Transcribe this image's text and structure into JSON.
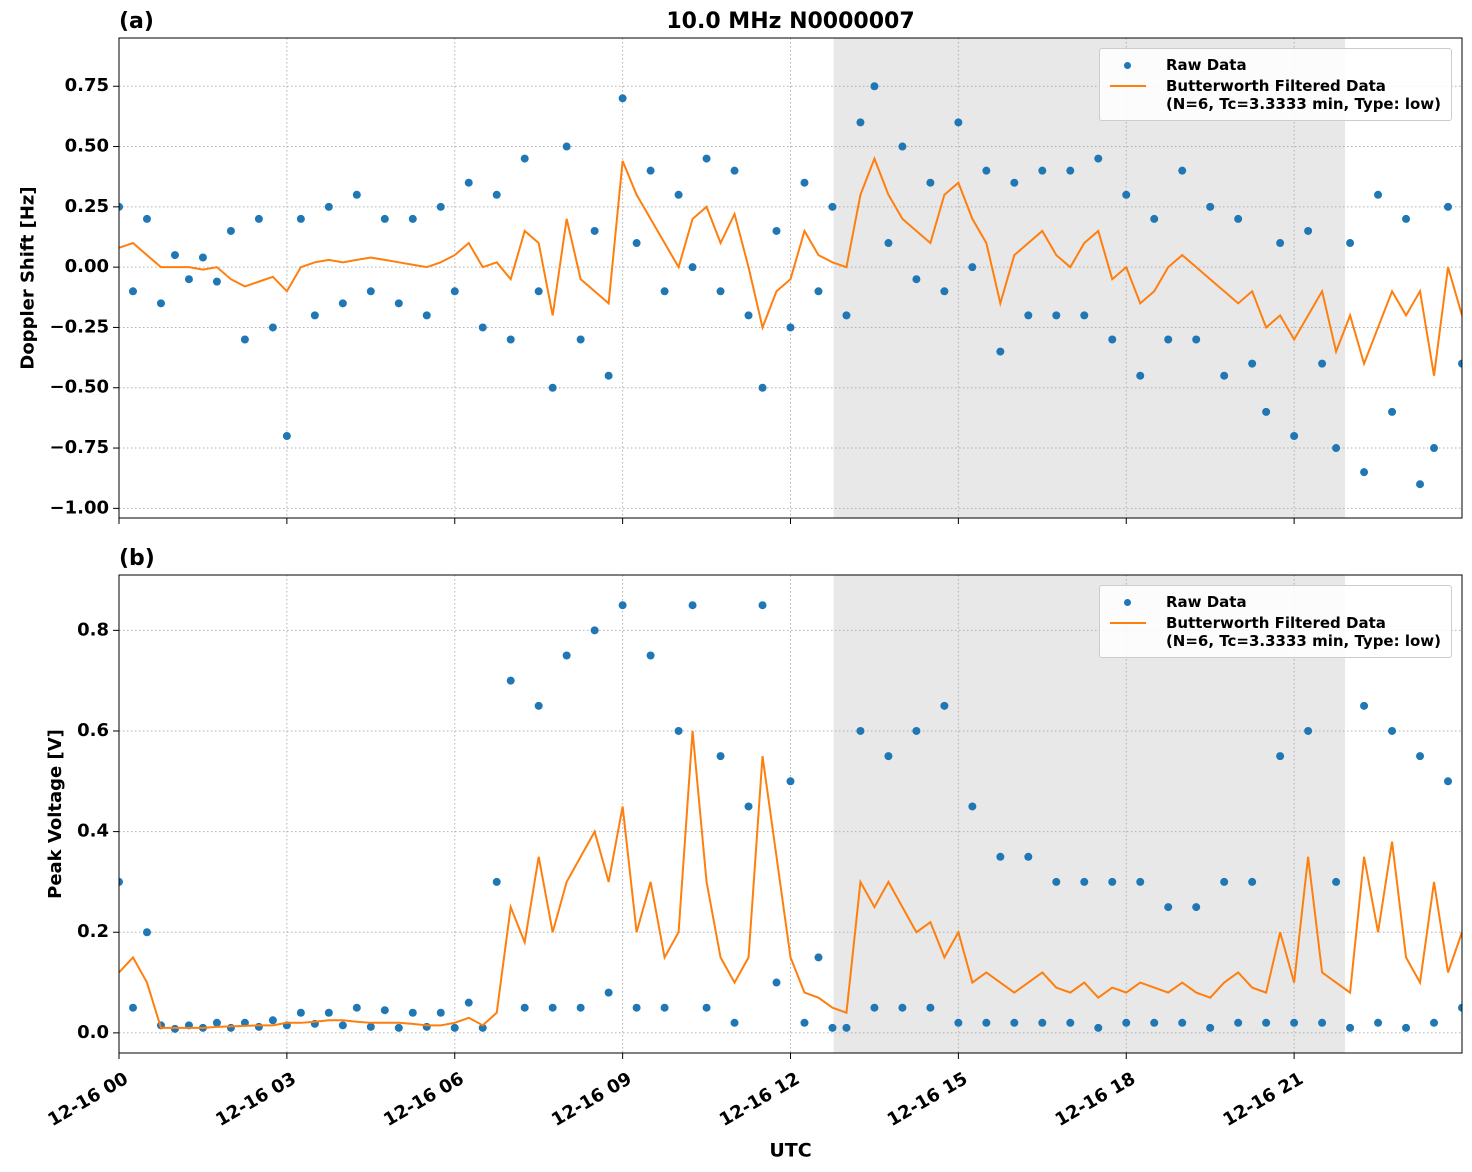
{
  "chart_data": [
    {
      "type": "scatter_line",
      "panel_label": "(a)",
      "title": "10.0 MHz N0000007",
      "ylabel": "Doppler Shift [Hz]",
      "xlim": [
        0,
        24
      ],
      "ylim": [
        -1.04,
        0.95
      ],
      "xticks": [
        0,
        3,
        6,
        9,
        12,
        15,
        18,
        21
      ],
      "xtick_labels_visible": false,
      "yticks": [
        {
          "value": -1.0,
          "label": "−1.00"
        },
        {
          "value": -0.75,
          "label": "−0.75"
        },
        {
          "value": -0.5,
          "label": "−0.50"
        },
        {
          "value": -0.25,
          "label": "−0.25"
        },
        {
          "value": 0,
          "label": "0.00"
        },
        0.25,
        {
          "value": 0.5,
          "label": "0.50"
        },
        0.75
      ],
      "grid": true,
      "legend": "upper right",
      "shaded_span": [
        12.77,
        21.91
      ],
      "shade_color": "#e8e8e8",
      "x": [
        0,
        0.25,
        0.5,
        0.75,
        1,
        1.25,
        1.5,
        1.75,
        2,
        2.25,
        2.5,
        2.75,
        3,
        3.25,
        3.5,
        3.75,
        4,
        4.25,
        4.5,
        4.75,
        5,
        5.25,
        5.5,
        5.75,
        6,
        6.25,
        6.5,
        6.75,
        7,
        7.25,
        7.5,
        7.75,
        8,
        8.25,
        8.5,
        8.75,
        9,
        9.25,
        9.5,
        9.75,
        10,
        10.25,
        10.5,
        10.75,
        11,
        11.25,
        11.5,
        11.75,
        12,
        12.25,
        12.5,
        12.75,
        13,
        13.25,
        13.5,
        13.75,
        14,
        14.25,
        14.5,
        14.75,
        15,
        15.25,
        15.5,
        15.75,
        16,
        16.25,
        16.5,
        16.75,
        17,
        17.25,
        17.5,
        17.75,
        18,
        18.25,
        18.5,
        18.75,
        19,
        19.25,
        19.5,
        19.75,
        20,
        20.25,
        20.5,
        20.75,
        21,
        21.25,
        21.5,
        21.75,
        22,
        22.25,
        22.5,
        22.75,
        23,
        23.25,
        23.5,
        23.75,
        24
      ],
      "series": [
        {
          "name": "Raw Data",
          "kind": "scatter",
          "color": "#1f77b4",
          "values": [
            0.25,
            -0.1,
            0.2,
            -0.15,
            0.05,
            -0.05,
            0.04,
            -0.06,
            0.15,
            -0.3,
            0.2,
            -0.25,
            -0.7,
            0.2,
            -0.2,
            0.25,
            -0.15,
            0.3,
            -0.1,
            0.2,
            -0.15,
            0.2,
            -0.2,
            0.25,
            -0.1,
            0.35,
            -0.25,
            0.3,
            -0.3,
            0.45,
            -0.1,
            -0.5,
            0.5,
            -0.3,
            0.15,
            -0.45,
            0.7,
            0.1,
            0.4,
            -0.1,
            0.3,
            0.0,
            0.45,
            -0.1,
            0.4,
            -0.2,
            -0.5,
            0.15,
            -0.25,
            0.35,
            -0.1,
            0.25,
            -0.2,
            0.6,
            0.75,
            0.1,
            0.5,
            -0.05,
            0.35,
            -0.1,
            0.6,
            0.0,
            0.4,
            -0.35,
            0.35,
            -0.2,
            0.4,
            -0.2,
            0.4,
            -0.2,
            0.45,
            -0.3,
            0.3,
            -0.45,
            0.2,
            -0.3,
            0.4,
            -0.3,
            0.25,
            -0.45,
            0.2,
            -0.4,
            -0.6,
            0.1,
            -0.7,
            0.15,
            -0.4,
            -0.75,
            0.1,
            -0.85,
            0.3,
            -0.6,
            0.2,
            -0.9,
            -0.75,
            0.25,
            -0.4
          ]
        },
        {
          "name": "Butterworth Filtered Data\n(N=6, Tc=3.3333 min, Type: low)",
          "kind": "line",
          "color": "#ff7f0e",
          "values": [
            0.08,
            0.1,
            0.05,
            0.0,
            0.0,
            0.0,
            -0.01,
            0.0,
            -0.05,
            -0.08,
            -0.06,
            -0.04,
            -0.1,
            0.0,
            0.02,
            0.03,
            0.02,
            0.03,
            0.04,
            0.03,
            0.02,
            0.01,
            0.0,
            0.02,
            0.05,
            0.1,
            0.0,
            0.02,
            -0.05,
            0.15,
            0.1,
            -0.2,
            0.2,
            -0.05,
            -0.1,
            -0.15,
            0.44,
            0.3,
            0.2,
            0.1,
            0.0,
            0.2,
            0.25,
            0.1,
            0.22,
            0.0,
            -0.25,
            -0.1,
            -0.05,
            0.15,
            0.05,
            0.02,
            0.0,
            0.3,
            0.45,
            0.3,
            0.2,
            0.15,
            0.1,
            0.3,
            0.35,
            0.2,
            0.1,
            -0.15,
            0.05,
            0.1,
            0.15,
            0.05,
            0.0,
            0.1,
            0.15,
            -0.05,
            0.0,
            -0.15,
            -0.1,
            0.0,
            0.05,
            0.0,
            -0.05,
            -0.1,
            -0.15,
            -0.1,
            -0.25,
            -0.2,
            -0.3,
            -0.2,
            -0.1,
            -0.35,
            -0.2,
            -0.4,
            -0.25,
            -0.1,
            -0.2,
            -0.1,
            -0.45,
            0.0,
            -0.2
          ]
        }
      ]
    },
    {
      "type": "scatter_line",
      "panel_label": "(b)",
      "ylabel": "Peak Voltage [V]",
      "xlabel": "UTC",
      "xlim": [
        0,
        24
      ],
      "ylim": [
        -0.04,
        0.91
      ],
      "xticks": [
        {
          "value": 0,
          "label": "12-16 00"
        },
        {
          "value": 3,
          "label": "12-16 03"
        },
        {
          "value": 6,
          "label": "12-16 06"
        },
        {
          "value": 9,
          "label": "12-16 09"
        },
        {
          "value": 12,
          "label": "12-16 12"
        },
        {
          "value": 15,
          "label": "12-16 15"
        },
        {
          "value": 18,
          "label": "12-16 18"
        },
        {
          "value": 21,
          "label": "12-16 21"
        }
      ],
      "xtick_labels_visible": true,
      "yticks": [
        {
          "value": 0,
          "label": "0.0"
        },
        0.2,
        0.4,
        0.6,
        0.8
      ],
      "grid": true,
      "legend": "upper right",
      "shaded_span": [
        12.77,
        21.91
      ],
      "shade_color": "#e8e8e8",
      "x": [
        0,
        0.25,
        0.5,
        0.75,
        1,
        1.25,
        1.5,
        1.75,
        2,
        2.25,
        2.5,
        2.75,
        3,
        3.25,
        3.5,
        3.75,
        4,
        4.25,
        4.5,
        4.75,
        5,
        5.25,
        5.5,
        5.75,
        6,
        6.25,
        6.5,
        6.75,
        7,
        7.25,
        7.5,
        7.75,
        8,
        8.25,
        8.5,
        8.75,
        9,
        9.25,
        9.5,
        9.75,
        10,
        10.25,
        10.5,
        10.75,
        11,
        11.25,
        11.5,
        11.75,
        12,
        12.25,
        12.5,
        12.75,
        13,
        13.25,
        13.5,
        13.75,
        14,
        14.25,
        14.5,
        14.75,
        15,
        15.25,
        15.5,
        15.75,
        16,
        16.25,
        16.5,
        16.75,
        17,
        17.25,
        17.5,
        17.75,
        18,
        18.25,
        18.5,
        18.75,
        19,
        19.25,
        19.5,
        19.75,
        20,
        20.25,
        20.5,
        20.75,
        21,
        21.25,
        21.5,
        21.75,
        22,
        22.25,
        22.5,
        22.75,
        23,
        23.25,
        23.5,
        23.75,
        24
      ],
      "series": [
        {
          "name": "Raw Data",
          "kind": "scatter",
          "color": "#1f77b4",
          "values": [
            0.3,
            0.05,
            0.2,
            0.015,
            0.008,
            0.015,
            0.01,
            0.02,
            0.01,
            0.02,
            0.012,
            0.025,
            0.015,
            0.04,
            0.018,
            0.04,
            0.015,
            0.05,
            0.012,
            0.045,
            0.01,
            0.04,
            0.012,
            0.04,
            0.01,
            0.06,
            0.01,
            0.3,
            0.7,
            0.05,
            0.65,
            0.05,
            0.75,
            0.05,
            0.8,
            0.08,
            0.85,
            0.05,
            0.75,
            0.05,
            0.6,
            0.85,
            0.05,
            0.55,
            0.02,
            0.45,
            0.85,
            0.1,
            0.5,
            0.02,
            0.15,
            0.01,
            0.01,
            0.6,
            0.05,
            0.55,
            0.05,
            0.6,
            0.05,
            0.65,
            0.02,
            0.45,
            0.02,
            0.35,
            0.02,
            0.35,
            0.02,
            0.3,
            0.02,
            0.3,
            0.01,
            0.3,
            0.02,
            0.3,
            0.02,
            0.25,
            0.02,
            0.25,
            0.01,
            0.3,
            0.02,
            0.3,
            0.02,
            0.55,
            0.02,
            0.6,
            0.02,
            0.3,
            0.01,
            0.65,
            0.02,
            0.6,
            0.01,
            0.55,
            0.02,
            0.5,
            0.05
          ]
        },
        {
          "name": "Butterworth Filtered Data\n(N=6, Tc=3.3333 min, Type: low)",
          "kind": "line",
          "color": "#ff7f0e",
          "values": [
            0.12,
            0.15,
            0.1,
            0.01,
            0.01,
            0.01,
            0.01,
            0.012,
            0.013,
            0.014,
            0.015,
            0.015,
            0.02,
            0.02,
            0.022,
            0.025,
            0.025,
            0.022,
            0.02,
            0.02,
            0.02,
            0.018,
            0.015,
            0.015,
            0.02,
            0.03,
            0.015,
            0.04,
            0.25,
            0.18,
            0.35,
            0.2,
            0.3,
            0.35,
            0.4,
            0.3,
            0.45,
            0.2,
            0.3,
            0.15,
            0.2,
            0.6,
            0.3,
            0.15,
            0.1,
            0.15,
            0.55,
            0.35,
            0.15,
            0.08,
            0.07,
            0.05,
            0.04,
            0.3,
            0.25,
            0.3,
            0.25,
            0.2,
            0.22,
            0.15,
            0.2,
            0.1,
            0.12,
            0.1,
            0.08,
            0.1,
            0.12,
            0.09,
            0.08,
            0.1,
            0.07,
            0.09,
            0.08,
            0.1,
            0.09,
            0.08,
            0.1,
            0.08,
            0.07,
            0.1,
            0.12,
            0.09,
            0.08,
            0.2,
            0.1,
            0.35,
            0.12,
            0.1,
            0.08,
            0.35,
            0.2,
            0.38,
            0.15,
            0.1,
            0.3,
            0.12,
            0.2
          ]
        }
      ]
    }
  ]
}
